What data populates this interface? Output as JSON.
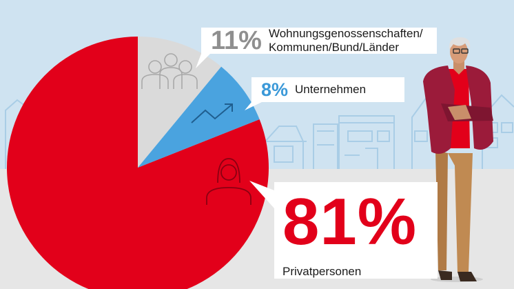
{
  "chart_data": {
    "type": "pie",
    "slices": [
      {
        "label": "Privatpersonen",
        "value": 81,
        "value_label": "81%",
        "color": "#e2001a",
        "icon": "woman-icon"
      },
      {
        "label": "Wohnungsgenossenschaften/ Kommunen/Bund/Länder",
        "label_lines": [
          "Wohnungsgenossenschaften/",
          "Kommunen/Bund/Länder"
        ],
        "value": 11,
        "value_label": "11%",
        "color": "#dadada",
        "icon": "group-of-people-icon"
      },
      {
        "label": "Unternehmen",
        "value": 8,
        "value_label": "8%",
        "color": "#4aa3df",
        "icon": "trend-up-icon"
      }
    ]
  },
  "colors": {
    "sky": "#cfe3f1",
    "ground": "#e6e6e6",
    "house_outline": "#a9cde6",
    "pie_red": "#e2001a",
    "pie_grey": "#dadada",
    "pie_blue": "#4aa3df",
    "jacket": "#9b1b3a"
  }
}
